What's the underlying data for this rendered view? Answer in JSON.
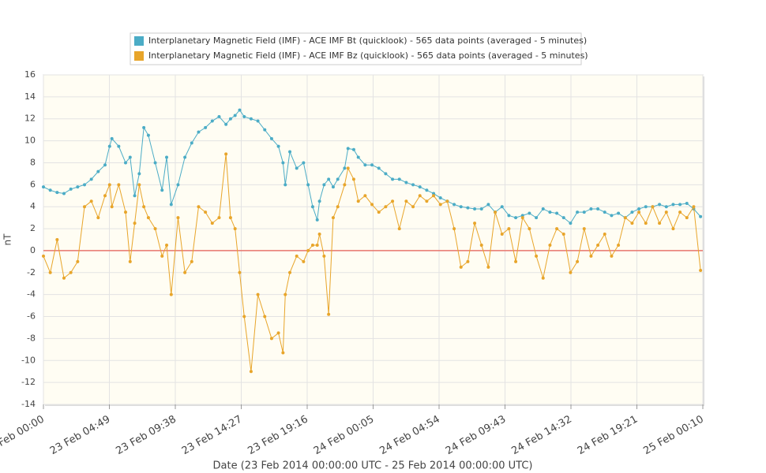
{
  "chart_data": {
    "type": "line",
    "ylabel": "nT",
    "xlabel": "Date (23 Feb 2014 00:00:00 UTC - 25 Feb 2014 00:00:00 UTC)",
    "x": [
      "2014-02-23 00:00",
      "2014-02-23 00:30",
      "2014-02-23 01:00",
      "2014-02-23 01:30",
      "2014-02-23 02:00",
      "2014-02-23 02:30",
      "2014-02-23 03:00",
      "2014-02-23 03:30",
      "2014-02-23 04:00",
      "2014-02-23 04:30",
      "2014-02-23 04:50",
      "2014-02-23 05:00",
      "2014-02-23 05:30",
      "2014-02-23 06:00",
      "2014-02-23 06:20",
      "2014-02-23 06:40",
      "2014-02-23 07:00",
      "2014-02-23 07:20",
      "2014-02-23 07:40",
      "2014-02-23 08:10",
      "2014-02-23 08:40",
      "2014-02-23 09:00",
      "2014-02-23 09:20",
      "2014-02-23 09:50",
      "2014-02-23 10:20",
      "2014-02-23 10:50",
      "2014-02-23 11:20",
      "2014-02-23 11:50",
      "2014-02-23 12:20",
      "2014-02-23 12:50",
      "2014-02-23 13:20",
      "2014-02-23 13:40",
      "2014-02-23 14:00",
      "2014-02-23 14:20",
      "2014-02-23 14:40",
      "2014-02-23 15:10",
      "2014-02-23 15:40",
      "2014-02-23 16:10",
      "2014-02-23 16:40",
      "2014-02-23 17:10",
      "2014-02-23 17:30",
      "2014-02-23 17:40",
      "2014-02-23 18:00",
      "2014-02-23 18:30",
      "2014-02-23 19:00",
      "2014-02-23 19:20",
      "2014-02-23 19:40",
      "2014-02-23 20:00",
      "2014-02-23 20:10",
      "2014-02-23 20:30",
      "2014-02-23 20:50",
      "2014-02-23 21:10",
      "2014-02-23 21:30",
      "2014-02-23 22:00",
      "2014-02-23 22:15",
      "2014-02-23 22:40",
      "2014-02-23 23:00",
      "2014-02-23 23:30",
      "2014-02-24 00:00",
      "2014-02-24 00:30",
      "2014-02-24 01:00",
      "2014-02-24 01:30",
      "2014-02-24 02:00",
      "2014-02-24 02:30",
      "2014-02-24 03:00",
      "2014-02-24 03:30",
      "2014-02-24 04:00",
      "2014-02-24 04:30",
      "2014-02-24 05:00",
      "2014-02-24 05:30",
      "2014-02-24 06:00",
      "2014-02-24 06:30",
      "2014-02-24 07:00",
      "2014-02-24 07:30",
      "2014-02-24 08:00",
      "2014-02-24 08:30",
      "2014-02-24 09:00",
      "2014-02-24 09:30",
      "2014-02-24 10:00",
      "2014-02-24 10:30",
      "2014-02-24 11:00",
      "2014-02-24 11:30",
      "2014-02-24 12:00",
      "2014-02-24 12:30",
      "2014-02-24 13:00",
      "2014-02-24 13:30",
      "2014-02-24 14:00",
      "2014-02-24 14:30",
      "2014-02-24 15:00",
      "2014-02-24 15:30",
      "2014-02-24 16:00",
      "2014-02-24 16:30",
      "2014-02-24 17:00",
      "2014-02-24 17:30",
      "2014-02-24 18:00",
      "2014-02-24 18:30",
      "2014-02-24 19:00",
      "2014-02-24 19:30",
      "2014-02-24 20:00",
      "2014-02-24 20:30",
      "2014-02-24 21:00",
      "2014-02-24 21:30",
      "2014-02-24 22:00",
      "2014-02-24 22:30",
      "2014-02-24 23:00",
      "2014-02-24 23:30",
      "2014-02-25 00:00"
    ],
    "series": [
      {
        "name": "Interplanetary Magnetic Field (IMF) - ACE IMF Bt (quicklook) - 565 data points (averaged - 5 minutes)",
        "color": "#4bacc6",
        "values": [
          5.8,
          5.5,
          5.3,
          5.2,
          5.6,
          5.8,
          6.0,
          6.5,
          7.2,
          7.8,
          9.5,
          10.2,
          9.5,
          8.0,
          8.5,
          5.0,
          7.0,
          11.2,
          10.5,
          8.0,
          5.5,
          8.5,
          4.2,
          6.0,
          8.5,
          9.8,
          10.8,
          11.2,
          11.8,
          12.2,
          11.5,
          12.0,
          12.3,
          12.8,
          12.2,
          12.0,
          11.8,
          11.0,
          10.2,
          9.5,
          8.0,
          6.0,
          9.0,
          7.5,
          8.0,
          6.0,
          4.0,
          2.8,
          4.5,
          6.0,
          6.5,
          5.8,
          6.5,
          7.5,
          9.3,
          9.2,
          8.5,
          7.8,
          7.8,
          7.5,
          7.0,
          6.5,
          6.5,
          6.2,
          6.0,
          5.8,
          5.5,
          5.2,
          4.8,
          4.5,
          4.2,
          4.0,
          3.9,
          3.8,
          3.8,
          4.2,
          3.5,
          4.0,
          3.2,
          3.0,
          3.2,
          3.4,
          3.0,
          3.8,
          3.5,
          3.4,
          3.0,
          2.5,
          3.5,
          3.5,
          3.8,
          3.8,
          3.5,
          3.2,
          3.4,
          3.0,
          3.5,
          3.8,
          4.0,
          4.0,
          4.2,
          4.0,
          4.2,
          4.2,
          4.3,
          3.8,
          3.1
        ]
      },
      {
        "name": "Interplanetary Magnetic Field (IMF) - ACE IMF Bz (quicklook) - 565 data points (averaged - 5 minutes)",
        "color": "#e8a52a",
        "values": [
          -0.5,
          -2,
          1,
          -2.5,
          -2,
          -1,
          4,
          4.5,
          3,
          5,
          6,
          4,
          6,
          3.5,
          -1,
          2.5,
          6,
          4,
          3,
          2,
          -0.5,
          0.5,
          -4,
          3,
          -2,
          -1,
          4,
          3.5,
          2.5,
          3,
          8.8,
          3,
          2,
          -2,
          -6,
          -11,
          -4,
          -6,
          -8,
          -7.5,
          -9.3,
          -4,
          -2,
          -0.5,
          -1,
          0,
          0.5,
          0.5,
          1.5,
          -0.5,
          -5.8,
          3,
          4,
          6,
          7.5,
          6.5,
          4.5,
          5,
          4.2,
          3.5,
          4.0,
          4.5,
          2.0,
          4.5,
          4.0,
          5.0,
          4.5,
          5.0,
          4.2,
          4.5,
          2.0,
          -1.5,
          -1.0,
          2.5,
          0.5,
          -1.5,
          3.5,
          1.5,
          2.0,
          -1.0,
          3.0,
          2.0,
          -0.5,
          -2.5,
          0.5,
          2.0,
          1.5,
          -2.0,
          -1.0,
          2.0,
          -0.5,
          0.5,
          1.5,
          -0.5,
          0.5,
          3.0,
          2.5,
          3.5,
          2.5,
          4.0,
          2.5,
          3.5,
          2.0,
          3.5,
          3.0,
          4.0,
          -1.8
        ]
      }
    ],
    "xlim": [
      "2014-02-23 00:00",
      "2014-02-25 00:10"
    ],
    "xticks": [
      {
        "value": "2014-02-23 00:00",
        "label": "23 Feb 00:00"
      },
      {
        "value": "2014-02-23 04:49",
        "label": "23 Feb 04:49"
      },
      {
        "value": "2014-02-23 09:38",
        "label": "23 Feb 09:38"
      },
      {
        "value": "2014-02-23 14:27",
        "label": "23 Feb 14:27"
      },
      {
        "value": "2014-02-23 19:16",
        "label": "23 Feb 19:16"
      },
      {
        "value": "2014-02-24 00:05",
        "label": "24 Feb 00:05"
      },
      {
        "value": "2014-02-24 04:54",
        "label": "24 Feb 04:54"
      },
      {
        "value": "2014-02-24 09:43",
        "label": "24 Feb 09:43"
      },
      {
        "value": "2014-02-24 14:32",
        "label": "24 Feb 14:32"
      },
      {
        "value": "2014-02-24 19:21",
        "label": "24 Feb 19:21"
      },
      {
        "value": "2014-02-25 00:10",
        "label": "25 Feb 00:10"
      }
    ],
    "ylim": [
      -14,
      16
    ],
    "yticks": [
      -14,
      -12,
      -10,
      -8,
      -6,
      -4,
      -2,
      0,
      2,
      4,
      6,
      8,
      10,
      12,
      14,
      16
    ],
    "plot_lines": [
      {
        "value": 0,
        "color": "#e8766d"
      }
    ],
    "grid": true,
    "legend": "top"
  }
}
